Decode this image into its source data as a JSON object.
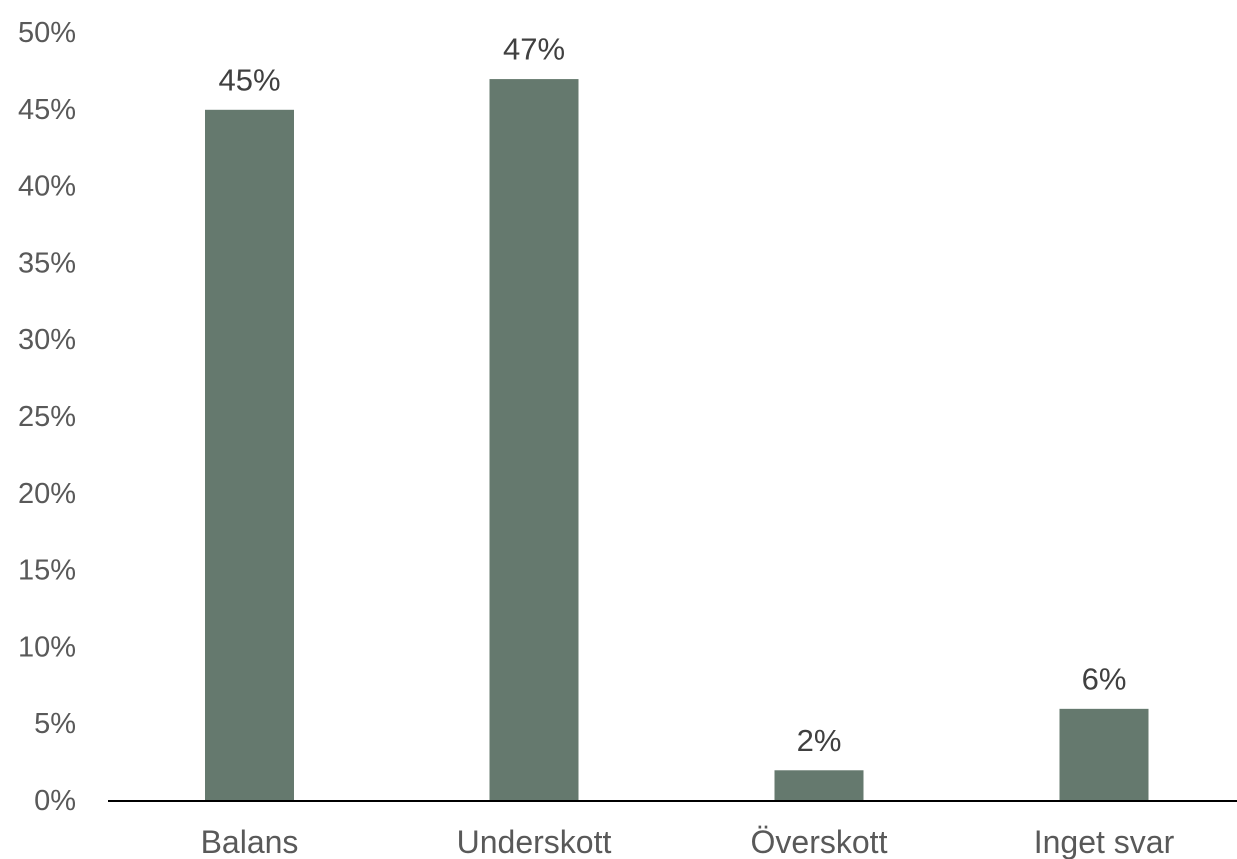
{
  "colors": {
    "bar": "#65796e",
    "axis": "#000000",
    "tick_text": "#595959",
    "data_label_text": "#404040"
  },
  "chart_data": {
    "type": "bar",
    "title": "",
    "xlabel": "",
    "ylabel": "",
    "categories": [
      "Balans",
      "Underskott",
      "Överskott",
      "Inget svar"
    ],
    "values": [
      45,
      47,
      2,
      6
    ],
    "value_labels": [
      "45%",
      "47%",
      "2%",
      "6%"
    ],
    "ylim": [
      0,
      50
    ],
    "y_ticks": [
      0,
      5,
      10,
      15,
      20,
      25,
      30,
      35,
      40,
      45,
      50
    ],
    "y_tick_labels": [
      "0%",
      "5%",
      "10%",
      "15%",
      "20%",
      "25%",
      "30%",
      "35%",
      "40%",
      "45%",
      "50%"
    ],
    "grid": false,
    "legend": "none"
  }
}
